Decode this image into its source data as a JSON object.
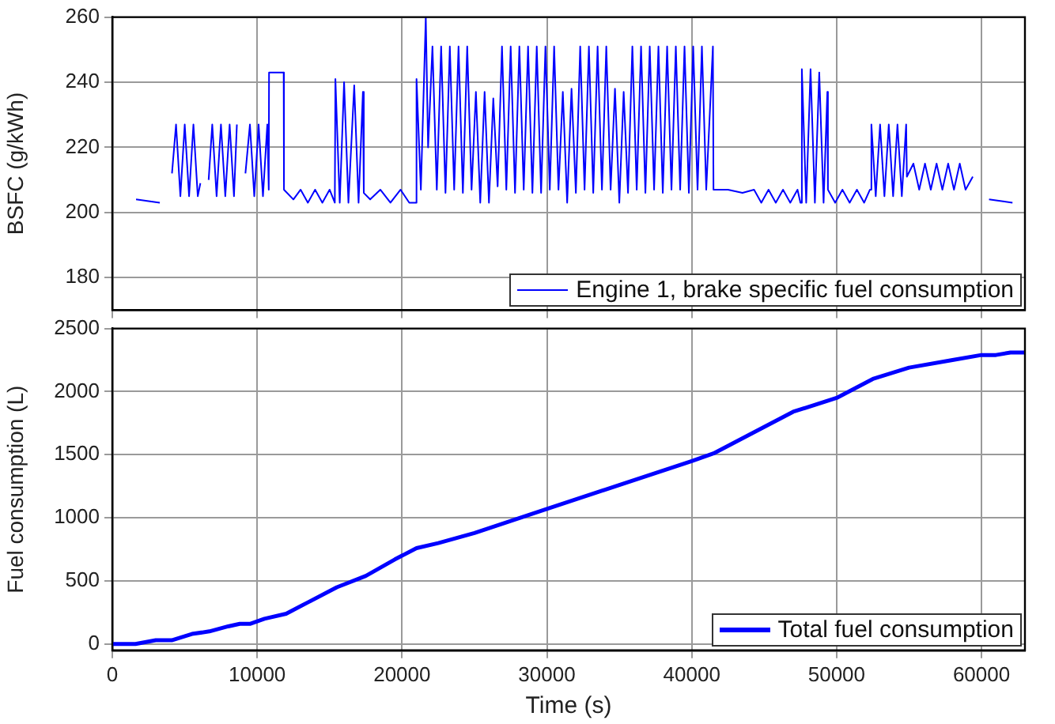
{
  "chart_data": [
    {
      "type": "line",
      "ylabel": "BSFC (g/kWh)",
      "xlim": [
        0,
        63000
      ],
      "xticks": [
        0,
        10000,
        20000,
        30000,
        40000,
        50000,
        60000
      ],
      "ylim": [
        170,
        260
      ],
      "yticks": [
        180,
        200,
        220,
        240,
        260
      ],
      "grid": true,
      "legend": "bottom right",
      "tick_labels": "y",
      "series": [
        {
          "name": "Engine 1, brake specific fuel consumption",
          "color": "#0000ff",
          "x": [
            1640,
            3280,
            3300,
            4120,
            4400,
            4700,
            5000,
            5300,
            5600,
            5900,
            6080,
            6100,
            6650,
            6900,
            7200,
            7500,
            7800,
            8100,
            8400,
            8600,
            8630,
            9190,
            9500,
            9800,
            10100,
            10400,
            10700,
            10800,
            10820,
            11830,
            11850,
            12500,
            13000,
            13500,
            14000,
            14500,
            15000,
            15360,
            15400,
            15700,
            16000,
            16300,
            16700,
            17000,
            17300,
            17360,
            17800,
            18500,
            19200,
            19900,
            20500,
            20970,
            21000,
            21300,
            21640,
            21800,
            22100,
            22400,
            22700,
            23000,
            23300,
            23600,
            23900,
            24200,
            24500,
            24800,
            25100,
            25400,
            25700,
            26000,
            26300,
            26600,
            26900,
            27200,
            27500,
            27800,
            28100,
            28400,
            28700,
            29000,
            29300,
            29600,
            29900,
            30200,
            30500,
            30800,
            31100,
            31400,
            31700,
            32000,
            32300,
            32600,
            32900,
            33200,
            33500,
            33800,
            34100,
            34400,
            34700,
            35000,
            35300,
            35600,
            35900,
            36200,
            36500,
            36800,
            37100,
            37400,
            37700,
            38000,
            38300,
            38600,
            38900,
            39200,
            39500,
            39800,
            40100,
            40400,
            40700,
            41000,
            41460,
            41500,
            42500,
            43500,
            44300,
            44800,
            45300,
            45800,
            46300,
            46800,
            47300,
            47500,
            47600,
            47900,
            48200,
            48500,
            48800,
            49100,
            49360,
            49400,
            49900,
            50400,
            50900,
            51400,
            51900,
            52300,
            52400,
            52700,
            53000,
            53300,
            53600,
            53900,
            54200,
            54500,
            54800,
            54850,
            55300,
            55700,
            56100,
            56500,
            56900,
            57300,
            57700,
            58100,
            58500,
            58900,
            59400,
            59450,
            60520,
            62140
          ],
          "values": [
            204,
            203,
            null,
            212,
            227,
            205,
            227,
            205,
            227,
            205,
            209,
            null,
            210,
            227,
            205,
            227,
            205,
            227,
            205,
            227,
            null,
            212,
            227,
            205,
            227,
            205,
            227,
            207,
            243,
            243,
            207,
            204,
            207,
            203,
            207,
            203,
            207,
            203,
            241,
            203,
            240,
            203,
            239,
            203,
            237,
            206,
            204,
            207,
            203,
            207,
            203,
            203,
            241,
            207,
            260,
            220,
            251,
            207,
            251,
            206,
            251,
            207,
            251,
            206,
            251,
            207,
            237,
            203,
            237,
            203,
            235,
            208,
            251,
            207,
            251,
            206,
            251,
            207,
            251,
            206,
            251,
            206,
            251,
            207,
            251,
            207,
            237,
            203,
            238,
            206,
            251,
            207,
            251,
            206,
            251,
            207,
            251,
            207,
            238,
            203,
            237,
            206,
            251,
            207,
            251,
            206,
            251,
            207,
            251,
            206,
            251,
            207,
            251,
            207,
            251,
            206,
            251,
            207,
            251,
            207,
            251,
            207,
            207,
            206,
            207,
            203,
            207,
            203,
            207,
            203,
            207,
            203,
            244,
            203,
            244,
            203,
            243,
            203,
            237,
            207,
            203,
            207,
            203,
            207,
            203,
            207,
            227,
            205,
            227,
            205,
            227,
            205,
            227,
            205,
            227,
            211,
            215,
            207,
            215,
            207,
            215,
            207,
            215,
            207,
            215,
            207,
            211,
            null,
            204,
            203
          ]
        }
      ]
    },
    {
      "type": "line",
      "xlabel": "Time (s)",
      "ylabel": "Fuel consumption (L)",
      "xlim": [
        0,
        63000
      ],
      "xticks": [
        0,
        10000,
        20000,
        30000,
        40000,
        50000,
        60000
      ],
      "ylim": [
        -50,
        2500
      ],
      "yticks": [
        0,
        500,
        1000,
        1500,
        2000,
        2500
      ],
      "grid": true,
      "legend": "bottom right",
      "series": [
        {
          "name": "Total fuel consumption",
          "color": "#0000ff",
          "x": [
            0,
            1600,
            3000,
            4100,
            5500,
            6700,
            8000,
            8800,
            9500,
            10500,
            12000,
            13500,
            15500,
            17500,
            19500,
            21000,
            22500,
            25000,
            30000,
            35000,
            40000,
            41500,
            44000,
            47000,
            50000,
            52500,
            55000,
            58000,
            60000,
            61000,
            62000,
            63000
          ],
          "values": [
            0,
            0,
            30,
            30,
            80,
            100,
            140,
            160,
            160,
            200,
            240,
            330,
            450,
            540,
            670,
            760,
            800,
            880,
            1070,
            1260,
            1450,
            1510,
            1660,
            1840,
            1950,
            2100,
            2190,
            2250,
            2290,
            2290,
            2310,
            2310
          ]
        }
      ]
    }
  ]
}
